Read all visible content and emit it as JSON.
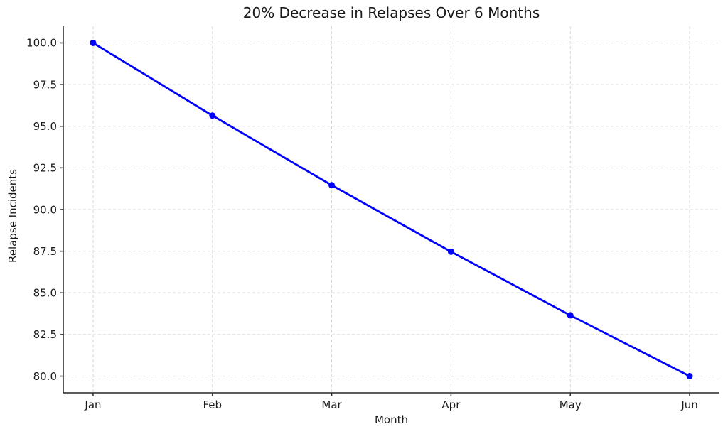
{
  "chart_data": {
    "type": "line",
    "title": "20% Decrease in Relapses Over 6 Months",
    "xlabel": "Month",
    "ylabel": "Relapse Incidents",
    "categories": [
      "Jan",
      "Feb",
      "Mar",
      "Apr",
      "May",
      "Jun"
    ],
    "series": [
      {
        "name": "Relapse Incidents",
        "values": [
          100.0,
          95.64,
          91.46,
          87.47,
          83.65,
          80.0
        ]
      }
    ],
    "yticks": [
      80.0,
      82.5,
      85.0,
      87.5,
      90.0,
      92.5,
      95.0,
      97.5,
      100.0
    ],
    "ytick_labels": [
      "80.0",
      "82.5",
      "85.0",
      "87.5",
      "90.0",
      "92.5",
      "95.0",
      "97.5",
      "100.0"
    ],
    "ylim": [
      79.0,
      101.0
    ],
    "xlim": [
      -0.25,
      5.25
    ],
    "grid": true,
    "grid_style": "dashed",
    "legend": "none",
    "colors": {
      "line": "#0000ff",
      "marker": "#0000ff",
      "grid": "#d5d5d5",
      "axis": "#262626",
      "text": "#1a1a1a",
      "background": "#ffffff"
    },
    "line_width": 2.8,
    "marker": "circle",
    "marker_radius": 4.5
  }
}
